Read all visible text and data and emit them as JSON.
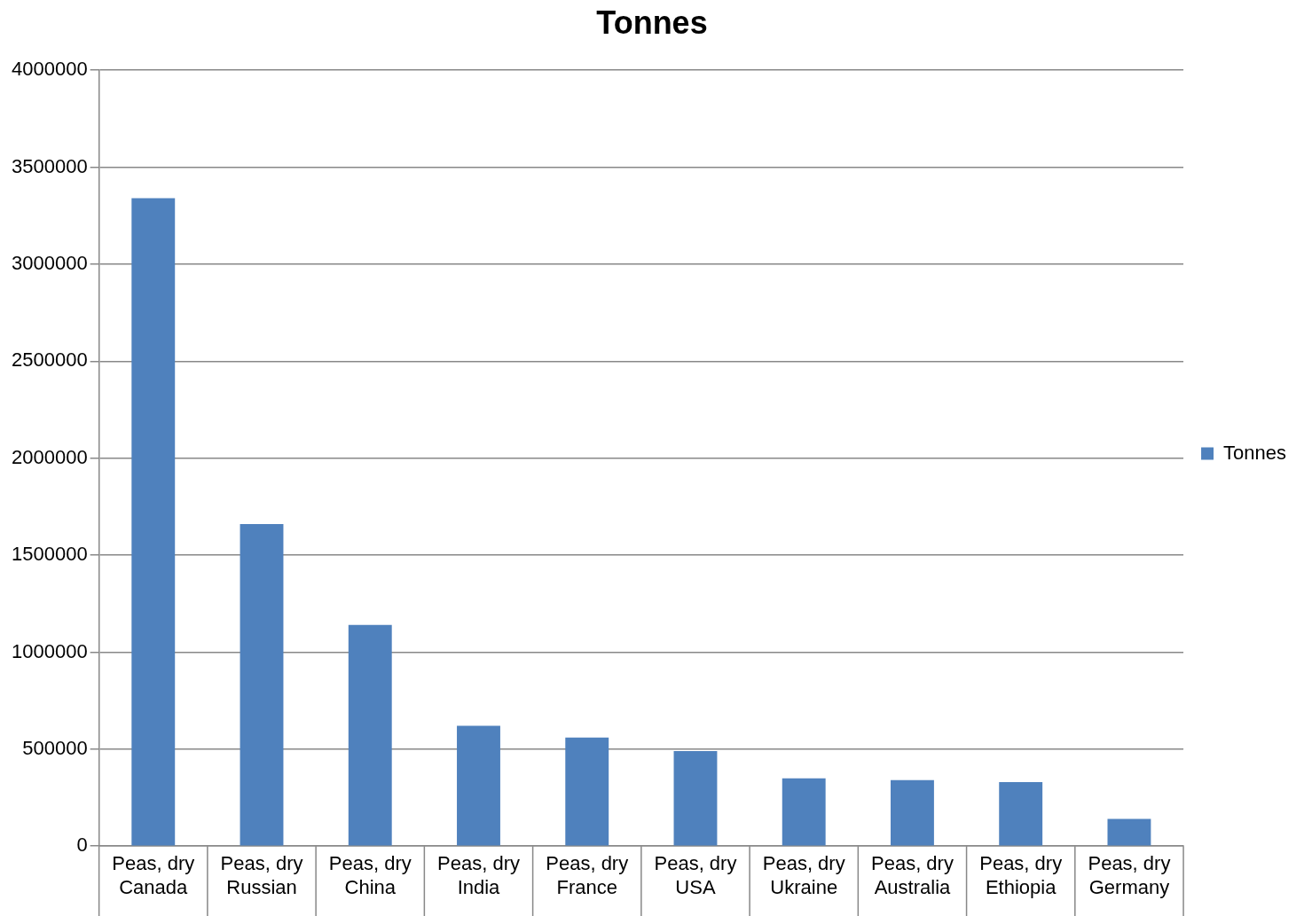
{
  "chart_data": {
    "type": "bar",
    "title": "Tonnes",
    "categories": [
      "Peas, dry\nCanada",
      "Peas, dry\nRussian",
      "Peas, dry\nChina",
      "Peas, dry\nIndia",
      "Peas, dry\nFrance",
      "Peas, dry\nUSA",
      "Peas, dry\nUkraine",
      "Peas, dry\nAustralia",
      "Peas, dry\nEthiopia",
      "Peas, dry\nGermany"
    ],
    "series": [
      {
        "name": "Tonnes",
        "color": "#4f81bd",
        "values": [
          3340000,
          1660000,
          1140000,
          620000,
          560000,
          490000,
          350000,
          340000,
          330000,
          140000
        ]
      }
    ],
    "ylim": [
      0,
      4000000
    ],
    "yticks": [
      0,
      500000,
      1000000,
      1500000,
      2000000,
      2500000,
      3000000,
      3500000,
      4000000
    ],
    "grid": "y",
    "legend": "right"
  }
}
